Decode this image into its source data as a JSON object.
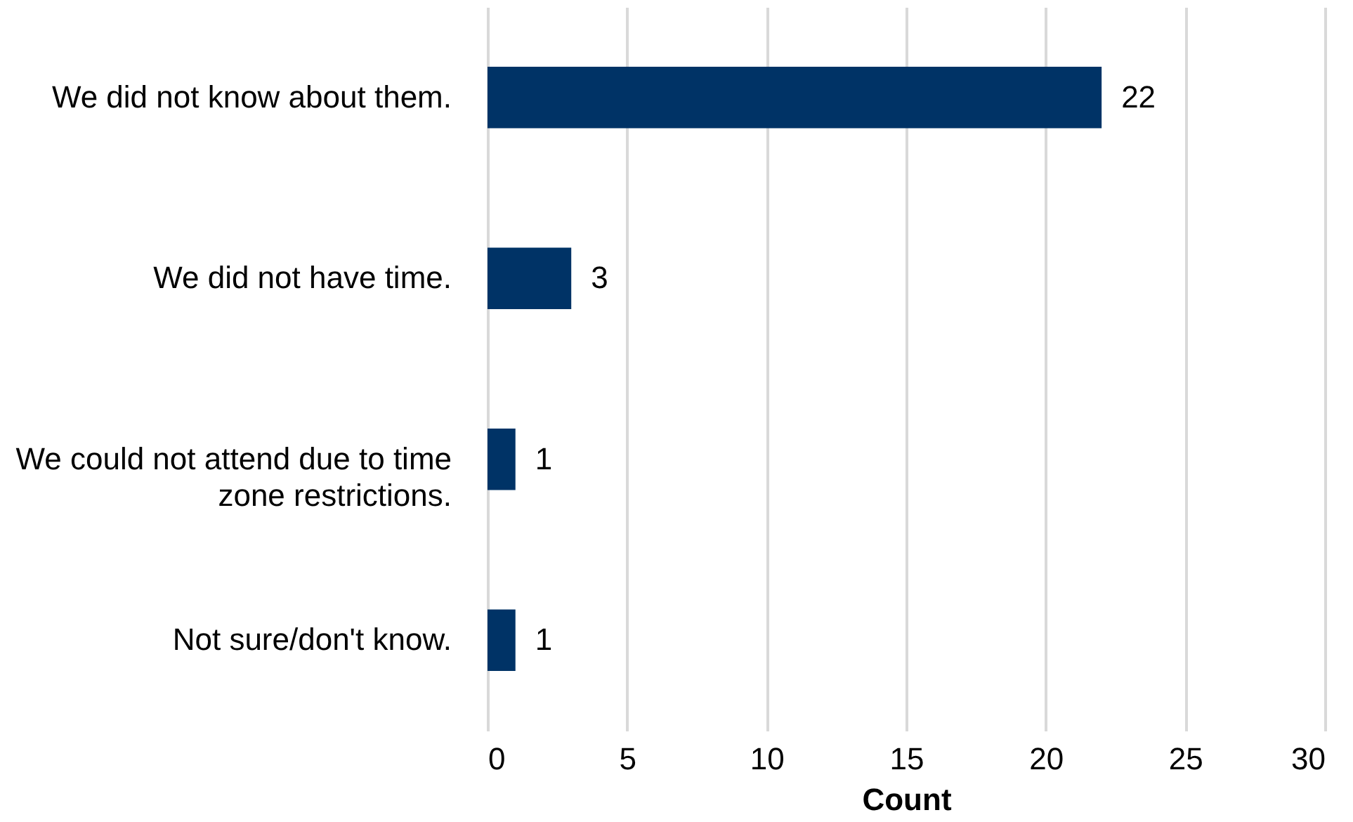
{
  "chart_data": {
    "type": "bar",
    "orientation": "horizontal",
    "xlabel": "Count",
    "categories": [
      "We did not know about them.",
      "We did not have time.",
      "We could not attend due to time zone restrictions.",
      "Not sure/don't know."
    ],
    "values": [
      22,
      3,
      1,
      1
    ],
    "color": "#003366",
    "xlim": [
      0,
      30
    ],
    "xticks": [
      0,
      5,
      10,
      15,
      20,
      25,
      30
    ],
    "grid": "x",
    "data_labels": true
  }
}
